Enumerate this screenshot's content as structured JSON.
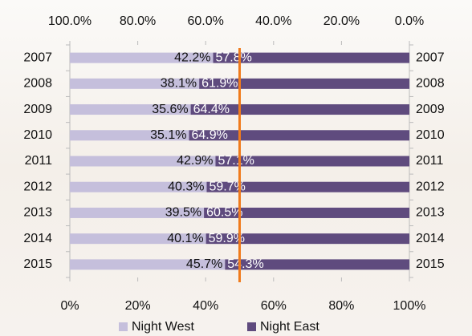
{
  "chart_data": {
    "type": "bar",
    "orientation": "horizontal",
    "stacked": true,
    "categories": [
      "2007",
      "2008",
      "2009",
      "2010",
      "2011",
      "2012",
      "2013",
      "2014",
      "2015"
    ],
    "series": [
      {
        "name": "Night West",
        "color": "#c5bfdc",
        "values": [
          42.2,
          38.1,
          35.6,
          35.1,
          42.9,
          40.3,
          39.5,
          40.1,
          45.7
        ],
        "value_labels": [
          "42.2%",
          "38.1%",
          "35.6%",
          "35.1%",
          "42.9%",
          "40.3%",
          "39.5%",
          "40.1%",
          "45.7%"
        ]
      },
      {
        "name": "Night East",
        "color": "#5f4b7e",
        "values": [
          57.8,
          61.9,
          64.4,
          64.9,
          57.1,
          59.7,
          60.5,
          59.9,
          54.3
        ],
        "value_labels": [
          "57.8%",
          "61.9%",
          "64.4%",
          "64.9%",
          "57.1%",
          "59.7%",
          "60.5%",
          "59.9%",
          "54.3%"
        ]
      }
    ],
    "xlim": [
      0,
      100
    ],
    "xticks": [
      {
        "value": 0,
        "label": "0%"
      },
      {
        "value": 20,
        "label": "20%"
      },
      {
        "value": 40,
        "label": "40%"
      },
      {
        "value": 60,
        "label": "60%"
      },
      {
        "value": 80,
        "label": "80%"
      },
      {
        "value": 100,
        "label": "100%"
      }
    ],
    "x2lim": [
      100,
      0
    ],
    "x2ticks": [
      {
        "value": 100,
        "label": "100.0%"
      },
      {
        "value": 80,
        "label": "80.0%"
      },
      {
        "value": 60,
        "label": "60.0%"
      },
      {
        "value": 40,
        "label": "40.0%"
      },
      {
        "value": 20,
        "label": "20.0%"
      },
      {
        "value": 0,
        "label": "0.0%"
      }
    ],
    "reference_line": {
      "value": 50,
      "color": "#f07b1c"
    },
    "legend": "bottom"
  }
}
